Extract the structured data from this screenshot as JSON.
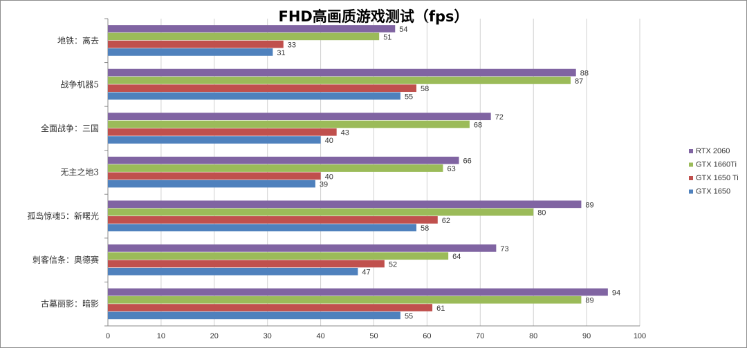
{
  "chart_data": {
    "type": "bar",
    "orientation": "horizontal",
    "title": "FHD高画质游戏测试（fps）",
    "categories": [
      "地铁：离去",
      "战争机器5",
      "全面战争：三国",
      "无主之地3",
      "孤岛惊魂5：新曙光",
      "刺客信条：奥德赛",
      "古墓丽影：暗影"
    ],
    "series": [
      {
        "name": "RTX 2060",
        "color": "#8064A2",
        "values": [
          54,
          88,
          72,
          66,
          89,
          73,
          94
        ]
      },
      {
        "name": "GTX 1660Ti",
        "color": "#9BBB59",
        "values": [
          51,
          87,
          68,
          63,
          80,
          64,
          89
        ]
      },
      {
        "name": "GTX 1650 Ti",
        "color": "#C0504D",
        "values": [
          33,
          58,
          43,
          40,
          62,
          52,
          61
        ]
      },
      {
        "name": "GTX 1650",
        "color": "#4F81BD",
        "values": [
          31,
          55,
          40,
          39,
          58,
          47,
          55
        ]
      }
    ],
    "xlim": [
      0,
      100
    ],
    "xticks": [
      0,
      10,
      20,
      30,
      40,
      50,
      60,
      70,
      80,
      90,
      100
    ],
    "grid": true,
    "legend_position": "right",
    "data_labels": true
  }
}
